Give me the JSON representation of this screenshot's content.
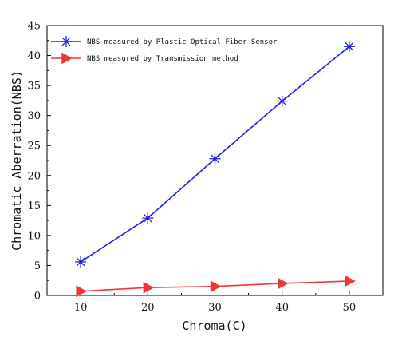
{
  "chart_data": {
    "type": "line",
    "xlabel": "Chroma(C)",
    "ylabel": "Chromatic Aberration(NBS)",
    "xlim": [
      5,
      55
    ],
    "ylim": [
      0,
      45
    ],
    "xticks": [
      10,
      20,
      30,
      40,
      50
    ],
    "yticks": [
      0,
      5,
      10,
      15,
      20,
      25,
      30,
      35,
      40,
      45
    ],
    "grid": false,
    "legend_position": "top-left",
    "x": [
      10,
      20,
      30,
      40,
      50
    ],
    "series": [
      {
        "name": "NBS measured by Plastic Optical Fiber Sensor",
        "values": [
          5.6,
          12.9,
          22.8,
          32.4,
          41.5
        ],
        "color": "#2020e0",
        "marker": "asterisk"
      },
      {
        "name": "NBS measured by Transmission method",
        "values": [
          0.7,
          1.3,
          1.5,
          2.0,
          2.4
        ],
        "color": "#ee3838",
        "marker": "triangle-right"
      }
    ]
  }
}
